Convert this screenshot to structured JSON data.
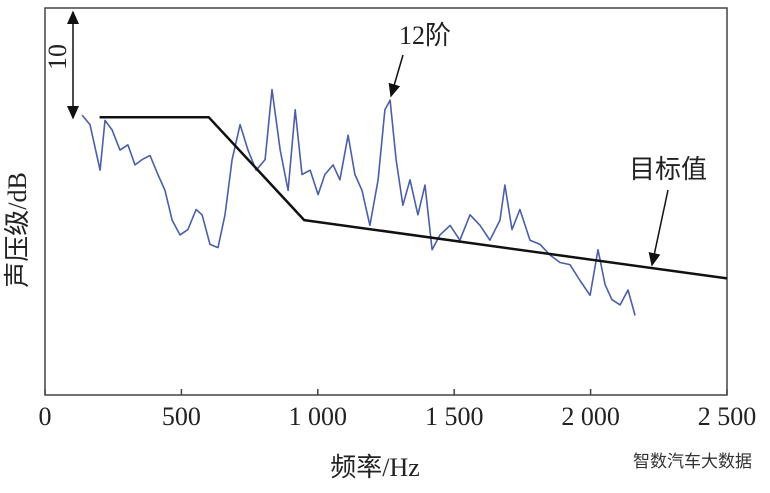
{
  "chart_data": {
    "type": "line",
    "xlabel": "频率/Hz",
    "ylabel": "声压级/dB",
    "xlim": [
      0,
      2500
    ],
    "ylim": [
      0,
      36.5
    ],
    "xticks": [
      0,
      500,
      {
        "value": 1000,
        "label": "1 000"
      },
      {
        "value": 1500,
        "label": "1 500"
      },
      {
        "value": 2000,
        "label": "2 000"
      },
      {
        "value": 2500,
        "label": "2 500"
      }
    ],
    "scale_bar": 10,
    "annotation": "12阶",
    "series": [
      {
        "color": "#4a5fa8",
        "x": [
          136,
          165,
          202,
          220,
          246,
          275,
          304,
          330,
          356,
          385,
          414,
          440,
          466,
          495,
          524,
          554,
          576,
          605,
          634,
          660,
          686,
          715,
          744,
          774,
          807,
          832,
          862,
          891,
          917,
          942,
          972,
          1001,
          1026,
          1056,
          1081,
          1111,
          1136,
          1162,
          1191,
          1221,
          1246,
          1265,
          1287,
          1312,
          1338,
          1367,
          1393,
          1419,
          1448,
          1485,
          1521,
          1558,
          1595,
          1631,
          1668,
          1686,
          1712,
          1741,
          1778,
          1815,
          1851,
          1888,
          1924,
          1961,
          1998,
          2027,
          2053,
          2078,
          2108,
          2137,
          2163
        ],
        "values": [
          26.4,
          25.5,
          21.2,
          25.9,
          25.0,
          23.1,
          23.6,
          21.7,
          22.2,
          22.6,
          20.8,
          19.3,
          16.5,
          15.1,
          15.6,
          17.5,
          17.0,
          14.2,
          13.9,
          17.0,
          22.2,
          25.5,
          23.1,
          21.2,
          22.2,
          28.8,
          23.1,
          19.3,
          26.9,
          20.8,
          21.2,
          18.9,
          20.8,
          21.7,
          20.3,
          24.5,
          20.8,
          19.3,
          16.0,
          20.3,
          26.9,
          27.8,
          22.2,
          17.9,
          20.3,
          17.0,
          19.8,
          13.7,
          15.1,
          16.0,
          14.6,
          17.0,
          16.0,
          14.6,
          16.5,
          19.8,
          15.6,
          17.5,
          14.6,
          14.2,
          13.2,
          12.5,
          12.3,
          10.8,
          9.4,
          13.7,
          10.4,
          9.0,
          8.5,
          9.9,
          7.5
        ]
      },
      {
        "name": "目标值",
        "color": "#111111",
        "x": [
          200,
          600,
          950,
          2500
        ],
        "values": [
          26.2,
          26.2,
          16.5,
          11.0
        ]
      }
    ]
  },
  "watermark": "智数汽车大数据"
}
